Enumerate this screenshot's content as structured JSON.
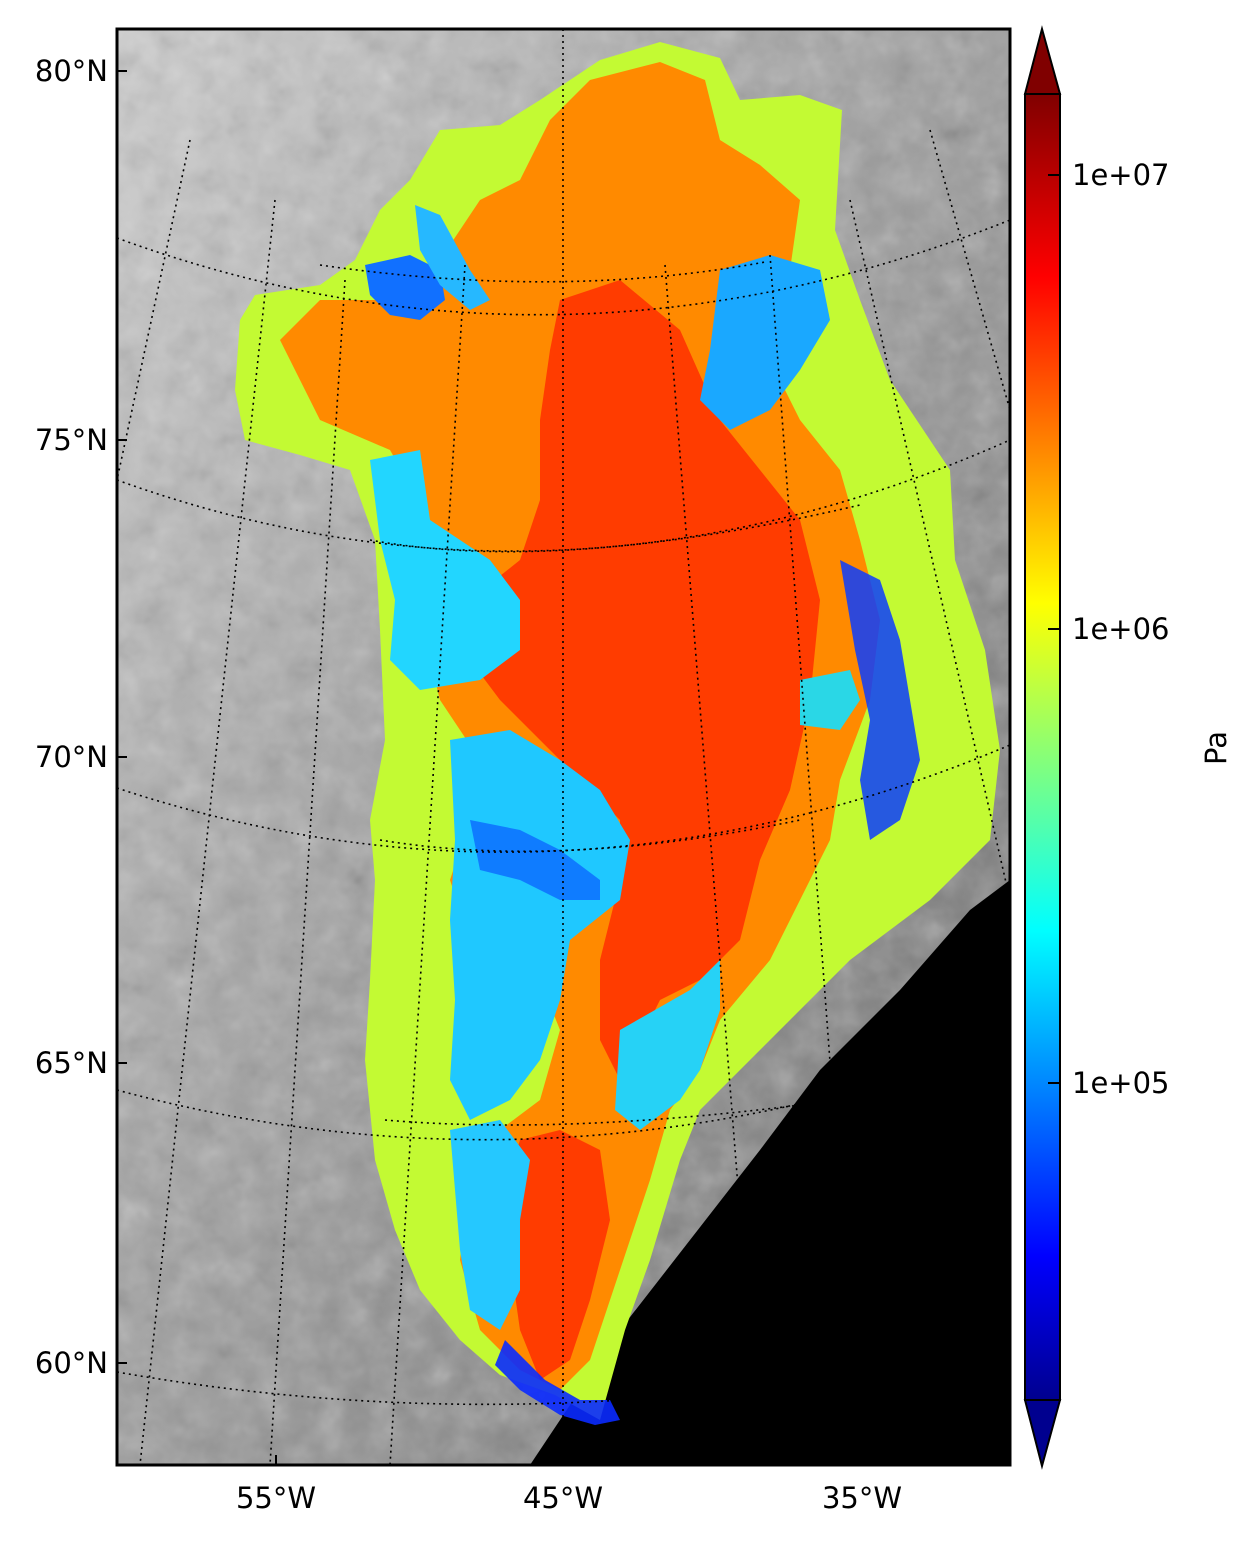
{
  "map": {
    "projection": "polar stereographic",
    "background": "grayscale satellite imagery",
    "graticule_style": "dotted black",
    "ocean_no_data_color": "#000000",
    "latitude_labels": [
      "80°N",
      "75°N",
      "70°N",
      "65°N",
      "60°N"
    ],
    "longitude_labels": [
      "55°W",
      "45°W",
      "35°W"
    ]
  },
  "colorbar": {
    "colormap": "jet",
    "scale": "log",
    "extend": "both",
    "unit_label": "Pa",
    "tick_labels": [
      "1e+07",
      "1e+06",
      "1e+05"
    ],
    "tick_values": [
      10000000,
      1000000,
      100000
    ],
    "range": [
      2500,
      12000000
    ]
  },
  "colors": {
    "high": "#ff3a00",
    "mid_high": "#ff8c00",
    "mid": "#c8ff2a",
    "low": "#19c8ff",
    "lowest": "#0026d8"
  }
}
